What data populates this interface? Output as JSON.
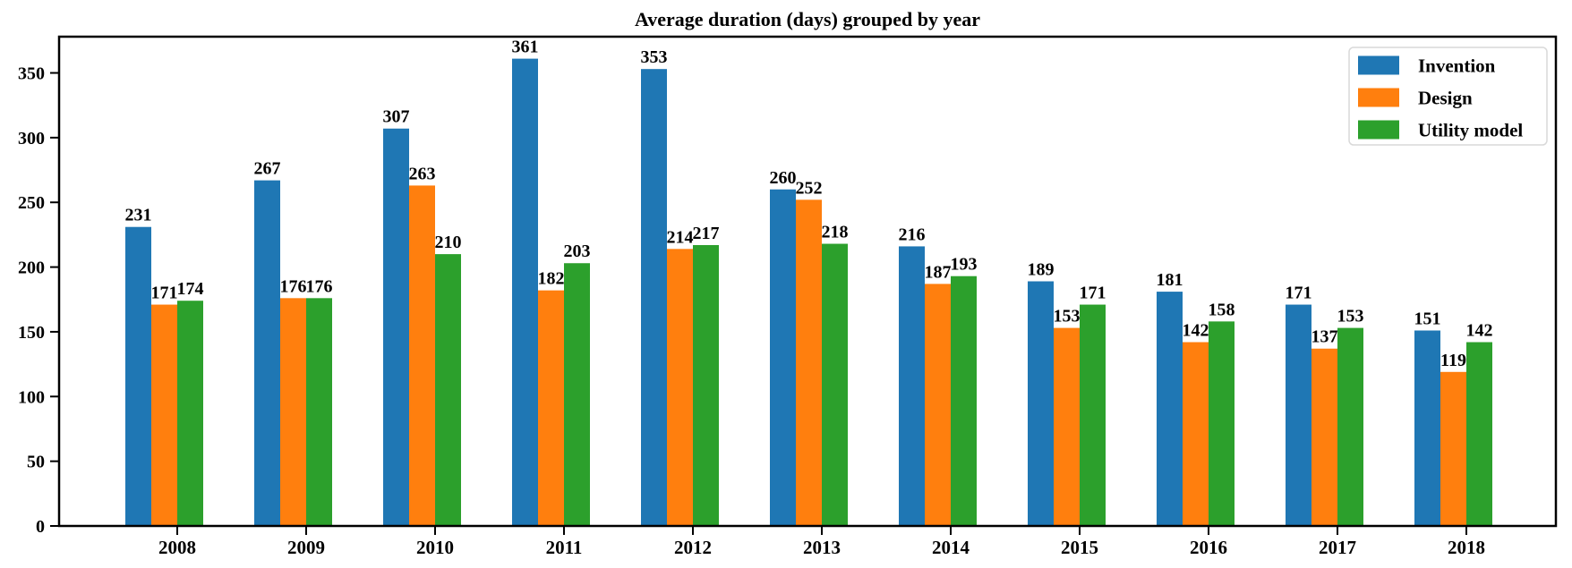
{
  "chart_data": {
    "type": "bar",
    "title": "Average duration (days) grouped by year",
    "categories": [
      "2008",
      "2009",
      "2010",
      "2011",
      "2012",
      "2013",
      "2014",
      "2015",
      "2016",
      "2017",
      "2018"
    ],
    "series": [
      {
        "name": "Invention",
        "color": "#1f77b4",
        "values": [
          231,
          267,
          307,
          361,
          353,
          260,
          216,
          189,
          181,
          171,
          151
        ]
      },
      {
        "name": "Design",
        "color": "#ff7f0e",
        "values": [
          171,
          176,
          263,
          182,
          214,
          252,
          187,
          153,
          142,
          137,
          119
        ]
      },
      {
        "name": "Utility model",
        "color": "#2ca02c",
        "values": [
          174,
          176,
          210,
          203,
          217,
          218,
          193,
          171,
          158,
          153,
          142
        ]
      }
    ],
    "xlabel": "",
    "ylabel": "",
    "ylim": [
      0,
      378
    ],
    "yticks": [
      0,
      50,
      100,
      150,
      200,
      250,
      300,
      350
    ],
    "bar_value_labels": true,
    "grid": false,
    "legend_position": "upper right"
  }
}
